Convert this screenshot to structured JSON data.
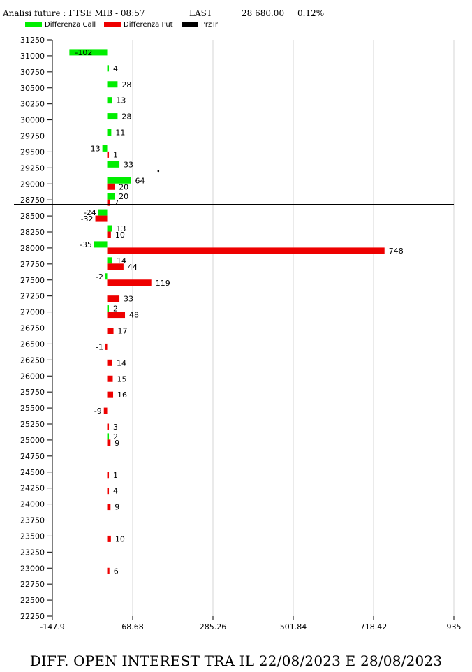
{
  "header": {
    "title": "Analisi future : FTSE MIB - 08:57",
    "last_label": "LAST",
    "last_value": "28 680.00",
    "change": "0.12%"
  },
  "legend": {
    "items": [
      {
        "label": "Differenza Call",
        "color": "#00ee00"
      },
      {
        "label": "Differenza Put",
        "color": "#ee0000"
      },
      {
        "label": "PrzTr",
        "color": "#000000"
      }
    ]
  },
  "footer": {
    "title": "DIFF. OPEN INTEREST TRA IL 22/08/2023 E 28/08/2023"
  },
  "chart_data": {
    "type": "bar",
    "orientation": "horizontal",
    "title": "Analisi future : FTSE MIB - 08:57",
    "x_ticks": [
      "-147.9",
      "68.68",
      "285.26",
      "501.84",
      "718.42",
      "935"
    ],
    "xlim": [
      -147.9,
      935
    ],
    "y_ticks": [
      31250,
      31000,
      30750,
      30500,
      30250,
      30000,
      29750,
      29500,
      29250,
      29000,
      28750,
      28500,
      28250,
      28000,
      27750,
      27500,
      27250,
      27000,
      26750,
      26500,
      26250,
      26000,
      25750,
      25500,
      25250,
      25000,
      24750,
      24500,
      24250,
      24000,
      23750,
      23500,
      23250,
      23000,
      22750,
      22500,
      22250
    ],
    "ylim": [
      22250,
      31250
    ],
    "grid": "vertical",
    "legend_position": "top-left",
    "price_line": {
      "name": "PrzTr",
      "value": 28680
    },
    "series": [
      {
        "name": "Differenza Call",
        "color": "#00ee00",
        "points": [
          {
            "strike": 31000,
            "value": -102
          },
          {
            "strike": 30750,
            "value": 4
          },
          {
            "strike": 30500,
            "value": 28
          },
          {
            "strike": 30250,
            "value": 13
          },
          {
            "strike": 30000,
            "value": 28
          },
          {
            "strike": 29750,
            "value": 11
          },
          {
            "strike": 29500,
            "value": -13
          },
          {
            "strike": 29250,
            "value": 33
          },
          {
            "strike": 29000,
            "value": 64
          },
          {
            "strike": 28750,
            "value": 20
          },
          {
            "strike": 28500,
            "value": -24
          },
          {
            "strike": 28250,
            "value": 13
          },
          {
            "strike": 28000,
            "value": -35
          },
          {
            "strike": 27750,
            "value": 14
          },
          {
            "strike": 27500,
            "value": -2
          },
          {
            "strike": 27000,
            "value": 2
          },
          {
            "strike": 25000,
            "value": 2
          }
        ]
      },
      {
        "name": "Differenza Put",
        "color": "#ee0000",
        "points": [
          {
            "strike": 29500,
            "value": 1
          },
          {
            "strike": 29000,
            "value": 20
          },
          {
            "strike": 28750,
            "value": 7
          },
          {
            "strike": 28500,
            "value": -32
          },
          {
            "strike": 28250,
            "value": 10
          },
          {
            "strike": 28000,
            "value": 748
          },
          {
            "strike": 27750,
            "value": 44
          },
          {
            "strike": 27500,
            "value": 119
          },
          {
            "strike": 27250,
            "value": 33
          },
          {
            "strike": 27000,
            "value": 48
          },
          {
            "strike": 26750,
            "value": 17
          },
          {
            "strike": 26500,
            "value": -1
          },
          {
            "strike": 26250,
            "value": 14
          },
          {
            "strike": 26000,
            "value": 15
          },
          {
            "strike": 25750,
            "value": 16
          },
          {
            "strike": 25500,
            "value": -9
          },
          {
            "strike": 25250,
            "value": 3
          },
          {
            "strike": 25000,
            "value": 9
          },
          {
            "strike": 24500,
            "value": 1
          },
          {
            "strike": 24250,
            "value": 4
          },
          {
            "strike": 24000,
            "value": 9
          },
          {
            "strike": 23500,
            "value": 10
          },
          {
            "strike": 23000,
            "value": 6
          }
        ]
      }
    ]
  }
}
